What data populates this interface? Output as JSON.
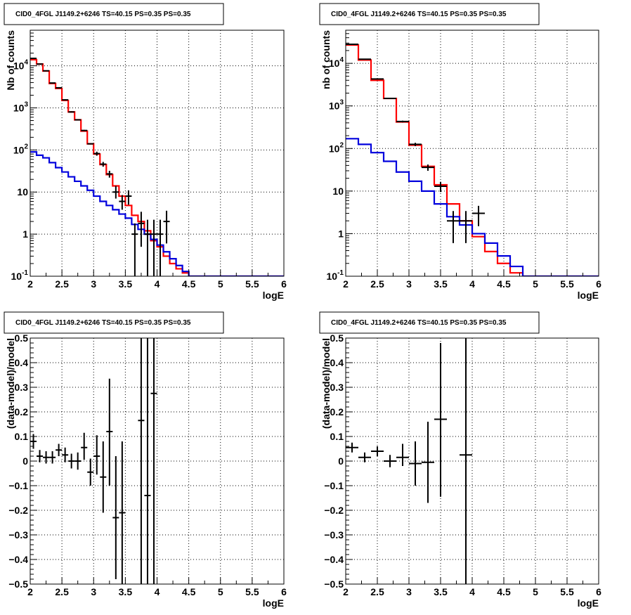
{
  "chart_data": [
    {
      "type": "line",
      "title": "CID0_4FGL J1149.2+6246 TS=40.15 PS=0.35 PS=0.35",
      "xlabel": "logE",
      "ylabel": "Nb of counts",
      "xlim": [
        2,
        6
      ],
      "ylim": [
        0.1,
        70000
      ],
      "log_y": true,
      "grid": true,
      "x_ticks": [
        "2",
        "2.5",
        "3",
        "3.5",
        "4",
        "4.5",
        "5",
        "5.5",
        "6"
      ],
      "y_ticks": [
        {
          "v": 0.1,
          "l": "10",
          "e": "-1"
        },
        {
          "v": 1,
          "l": "1",
          "e": ""
        },
        {
          "v": 10,
          "l": "10",
          "e": ""
        },
        {
          "v": 100,
          "l": "10",
          "e": "2"
        },
        {
          "v": 1000,
          "l": "10",
          "e": "3"
        },
        {
          "v": 10000,
          "l": "10",
          "e": "4"
        }
      ],
      "series": [
        {
          "color": "#ff0000",
          "style": "step",
          "bin_width": 0.1,
          "x": [
            2.0,
            2.1,
            2.2,
            2.3,
            2.4,
            2.5,
            2.6,
            2.7,
            2.8,
            2.9,
            3.0,
            3.1,
            3.2,
            3.3,
            3.4,
            3.5,
            3.6,
            3.7,
            3.8,
            3.9,
            4.0,
            4.1,
            4.2,
            4.3,
            4.4,
            4.5,
            4.6,
            4.7,
            4.8,
            4.9,
            5.0,
            5.1,
            5.2,
            5.3,
            5.4,
            5.5,
            5.6,
            5.7,
            5.8,
            5.9
          ],
          "values": [
            14000,
            11000,
            7500,
            3800,
            2900,
            1500,
            800,
            520,
            280,
            140,
            80,
            45,
            26,
            14,
            8,
            4.8,
            2.8,
            2.0,
            1.2,
            0.7,
            0.5,
            0.3,
            0.2,
            0.15,
            0.12,
            0.1,
            0.1,
            0.1,
            0.1,
            0.1,
            0.1,
            0.1,
            0.1,
            0.1,
            0.1,
            0.1,
            0.1,
            0.1,
            0.1,
            0.1
          ]
        },
        {
          "color": "#0000dd",
          "style": "step",
          "bin_width": 0.1,
          "x": [
            2.0,
            2.1,
            2.2,
            2.3,
            2.4,
            2.5,
            2.6,
            2.7,
            2.8,
            2.9,
            3.0,
            3.1,
            3.2,
            3.3,
            3.4,
            3.5,
            3.6,
            3.7,
            3.8,
            3.9,
            4.0,
            4.1,
            4.2,
            4.3,
            4.4,
            4.5,
            4.6,
            4.7,
            4.8,
            4.9,
            5.0,
            5.1,
            5.2,
            5.3,
            5.4,
            5.5,
            5.6,
            5.7,
            5.8,
            5.9
          ],
          "values": [
            90,
            75,
            65,
            50,
            38,
            30,
            23,
            18,
            14,
            11,
            8,
            6,
            4.8,
            3.8,
            3,
            2.4,
            1.7,
            1.3,
            1.0,
            0.75,
            0.55,
            0.38,
            0.26,
            0.18,
            0.13,
            0.1,
            0.1,
            0.1,
            0.1,
            0.1,
            0.1,
            0.1,
            0.1,
            0.1,
            0.1,
            0.1,
            0.1,
            0.1,
            0.1,
            0.1
          ]
        }
      ],
      "points": {
        "x_half_width": 0.05,
        "x": [
          2.05,
          2.15,
          2.25,
          2.35,
          2.45,
          2.55,
          2.65,
          2.75,
          2.85,
          2.95,
          3.05,
          3.15,
          3.25,
          3.35,
          3.45,
          3.55,
          3.65,
          3.75,
          3.85,
          3.95,
          4.05,
          4.15
        ],
        "y": [
          15000,
          11000,
          7600,
          3900,
          3000,
          1550,
          800,
          520,
          290,
          140,
          82,
          46,
          27,
          10,
          6,
          8,
          1,
          1.8,
          1,
          1,
          1,
          2
        ],
        "y_low": [
          14500,
          10700,
          7400,
          3850,
          2950,
          1500,
          780,
          505,
          280,
          135,
          73,
          40,
          22,
          7,
          3.8,
          5,
          0.1,
          0.5,
          0.1,
          0.1,
          0.1,
          0.6
        ],
        "y_high": [
          15500,
          11300,
          7800,
          3950,
          3050,
          1600,
          830,
          535,
          300,
          145,
          91,
          52,
          32,
          14,
          8.5,
          11,
          1.8,
          3.4,
          2.2,
          2.2,
          2.2,
          3.6
        ]
      }
    },
    {
      "type": "line",
      "title": "CID0_4FGL J1149.2+6246 TS=40.15 PS=0.35 PS=0.35",
      "xlabel": "logE",
      "ylabel": "nb of counts",
      "xlim": [
        2,
        6
      ],
      "ylim": [
        0.1,
        60000
      ],
      "log_y": true,
      "grid": true,
      "x_ticks": [
        "2",
        "2.5",
        "3",
        "3.5",
        "4",
        "4.5",
        "5",
        "5.5",
        "6"
      ],
      "y_ticks": [
        {
          "v": 0.1,
          "l": "10",
          "e": "-1"
        },
        {
          "v": 1,
          "l": "1",
          "e": ""
        },
        {
          "v": 10,
          "l": "10",
          "e": ""
        },
        {
          "v": 100,
          "l": "10",
          "e": "2"
        },
        {
          "v": 1000,
          "l": "10",
          "e": "3"
        },
        {
          "v": 10000,
          "l": "10",
          "e": "4"
        }
      ],
      "series": [
        {
          "color": "#ff0000",
          "style": "step",
          "bin_width": 0.2,
          "x": [
            2.0,
            2.2,
            2.4,
            2.6,
            2.8,
            3.0,
            3.2,
            3.4,
            3.6,
            3.8,
            4.0,
            4.2,
            4.4,
            4.6,
            4.8,
            5.0,
            5.2,
            5.4,
            5.6,
            5.8
          ],
          "values": [
            27000,
            12000,
            4000,
            1500,
            420,
            120,
            38,
            14,
            5,
            2,
            0.85,
            0.38,
            0.2,
            0.12,
            0.1,
            0.1,
            0.1,
            0.1,
            0.1,
            0.1
          ]
        },
        {
          "color": "#0000dd",
          "style": "step",
          "bin_width": 0.2,
          "x": [
            2.0,
            2.2,
            2.4,
            2.6,
            2.8,
            3.0,
            3.2,
            3.4,
            3.6,
            3.8,
            4.0,
            4.2,
            4.4,
            4.6,
            4.8,
            5.0,
            5.2,
            5.4,
            5.6,
            5.8
          ],
          "values": [
            170,
            125,
            80,
            50,
            28,
            17,
            10,
            5,
            2.5,
            1.6,
            1.0,
            0.6,
            0.3,
            0.17,
            0.1,
            0.1,
            0.1,
            0.1,
            0.1,
            0.1
          ]
        }
      ],
      "points": {
        "x_half_width": 0.1,
        "x": [
          2.1,
          2.3,
          2.5,
          2.7,
          2.9,
          3.1,
          3.3,
          3.5,
          3.7,
          3.9,
          4.1
        ],
        "y": [
          28000,
          12500,
          4300,
          1500,
          430,
          125,
          36,
          13,
          2,
          2,
          3
        ],
        "y_low": [
          27500,
          12300,
          4200,
          1470,
          410,
          114,
          30,
          9.5,
          0.6,
          0.6,
          1.5
        ],
        "y_high": [
          28500,
          12700,
          4400,
          1530,
          450,
          136,
          42,
          16.5,
          3.4,
          3.4,
          4.5
        ]
      }
    },
    {
      "type": "scatter",
      "title": "CID0_4FGL J1149.2+6246 TS=40.15 PS=0.35 PS=0.35",
      "xlabel": "logE",
      "ylabel": "(data-model)/model",
      "xlim": [
        2,
        6
      ],
      "ylim": [
        -0.5,
        0.5
      ],
      "log_y": false,
      "grid": true,
      "x_ticks": [
        "2",
        "2.5",
        "3",
        "3.5",
        "4",
        "4.5",
        "5",
        "5.5",
        "6"
      ],
      "y_ticks": [
        {
          "v": -0.5,
          "l": "−0.5"
        },
        {
          "v": -0.4,
          "l": "−0.4"
        },
        {
          "v": -0.3,
          "l": "−0.3"
        },
        {
          "v": -0.2,
          "l": "−0.2"
        },
        {
          "v": -0.1,
          "l": "−0.1"
        },
        {
          "v": 0,
          "l": "0"
        },
        {
          "v": 0.1,
          "l": "0.1"
        },
        {
          "v": 0.2,
          "l": "0.2"
        },
        {
          "v": 0.3,
          "l": "0.3"
        },
        {
          "v": 0.4,
          "l": "0.4"
        },
        {
          "v": 0.5,
          "l": "0.5"
        }
      ],
      "series": [],
      "points": {
        "x_half_width": 0.05,
        "x": [
          2.05,
          2.15,
          2.25,
          2.35,
          2.45,
          2.55,
          2.65,
          2.75,
          2.85,
          2.95,
          3.05,
          3.15,
          3.25,
          3.35,
          3.45,
          3.75,
          3.85,
          3.95
        ],
        "y": [
          0.08,
          0.02,
          0.015,
          0.015,
          0.045,
          0.025,
          0.0,
          0.0,
          0.055,
          -0.045,
          0.02,
          -0.065,
          0.12,
          -0.23,
          -0.21,
          0.165,
          -0.14,
          0.275
        ],
        "y_low": [
          0.05,
          -0.005,
          -0.01,
          -0.01,
          0.02,
          -0.005,
          -0.03,
          -0.035,
          0.005,
          -0.1,
          -0.055,
          -0.21,
          -0.1,
          -0.48,
          -0.5,
          -0.5,
          -0.5,
          -0.5
        ],
        "y_high": [
          0.11,
          0.045,
          0.04,
          0.04,
          0.07,
          0.055,
          0.03,
          0.035,
          0.115,
          0.01,
          0.105,
          0.08,
          0.335,
          0.02,
          0.08,
          0.5,
          0.5,
          0.5
        ]
      }
    },
    {
      "type": "scatter",
      "title": "CID0_4FGL J1149.2+6246 TS=40.15 PS=0.35 PS=0.35",
      "xlabel": "logE",
      "ylabel": "(data-model)/model",
      "xlim": [
        2,
        6
      ],
      "ylim": [
        -0.5,
        0.5
      ],
      "log_y": false,
      "grid": true,
      "x_ticks": [
        "2",
        "2.5",
        "3",
        "3.5",
        "4",
        "4.5",
        "5",
        "5.5",
        "6"
      ],
      "y_ticks": [
        {
          "v": -0.5,
          "l": "−0.5"
        },
        {
          "v": -0.4,
          "l": "−0.4"
        },
        {
          "v": -0.3,
          "l": "−0.3"
        },
        {
          "v": -0.2,
          "l": "−0.2"
        },
        {
          "v": -0.1,
          "l": "−0.1"
        },
        {
          "v": 0,
          "l": "0"
        },
        {
          "v": 0.1,
          "l": "0.1"
        },
        {
          "v": 0.2,
          "l": "0.2"
        },
        {
          "v": 0.3,
          "l": "0.3"
        },
        {
          "v": 0.4,
          "l": "0.4"
        },
        {
          "v": 0.5,
          "l": "0.5"
        }
      ],
      "series": [],
      "points": {
        "x_half_width": 0.1,
        "x": [
          2.1,
          2.3,
          2.5,
          2.7,
          2.9,
          3.1,
          3.3,
          3.5,
          3.9
        ],
        "y": [
          0.055,
          0.015,
          0.04,
          0.0,
          0.015,
          -0.01,
          -0.005,
          0.17,
          0.025
        ],
        "y_low": [
          0.035,
          -0.005,
          0.02,
          -0.025,
          -0.02,
          -0.1,
          -0.17,
          -0.145,
          -0.5
        ],
        "y_high": [
          0.075,
          0.035,
          0.06,
          0.025,
          0.07,
          0.08,
          0.16,
          0.48,
          0.5
        ]
      }
    }
  ]
}
